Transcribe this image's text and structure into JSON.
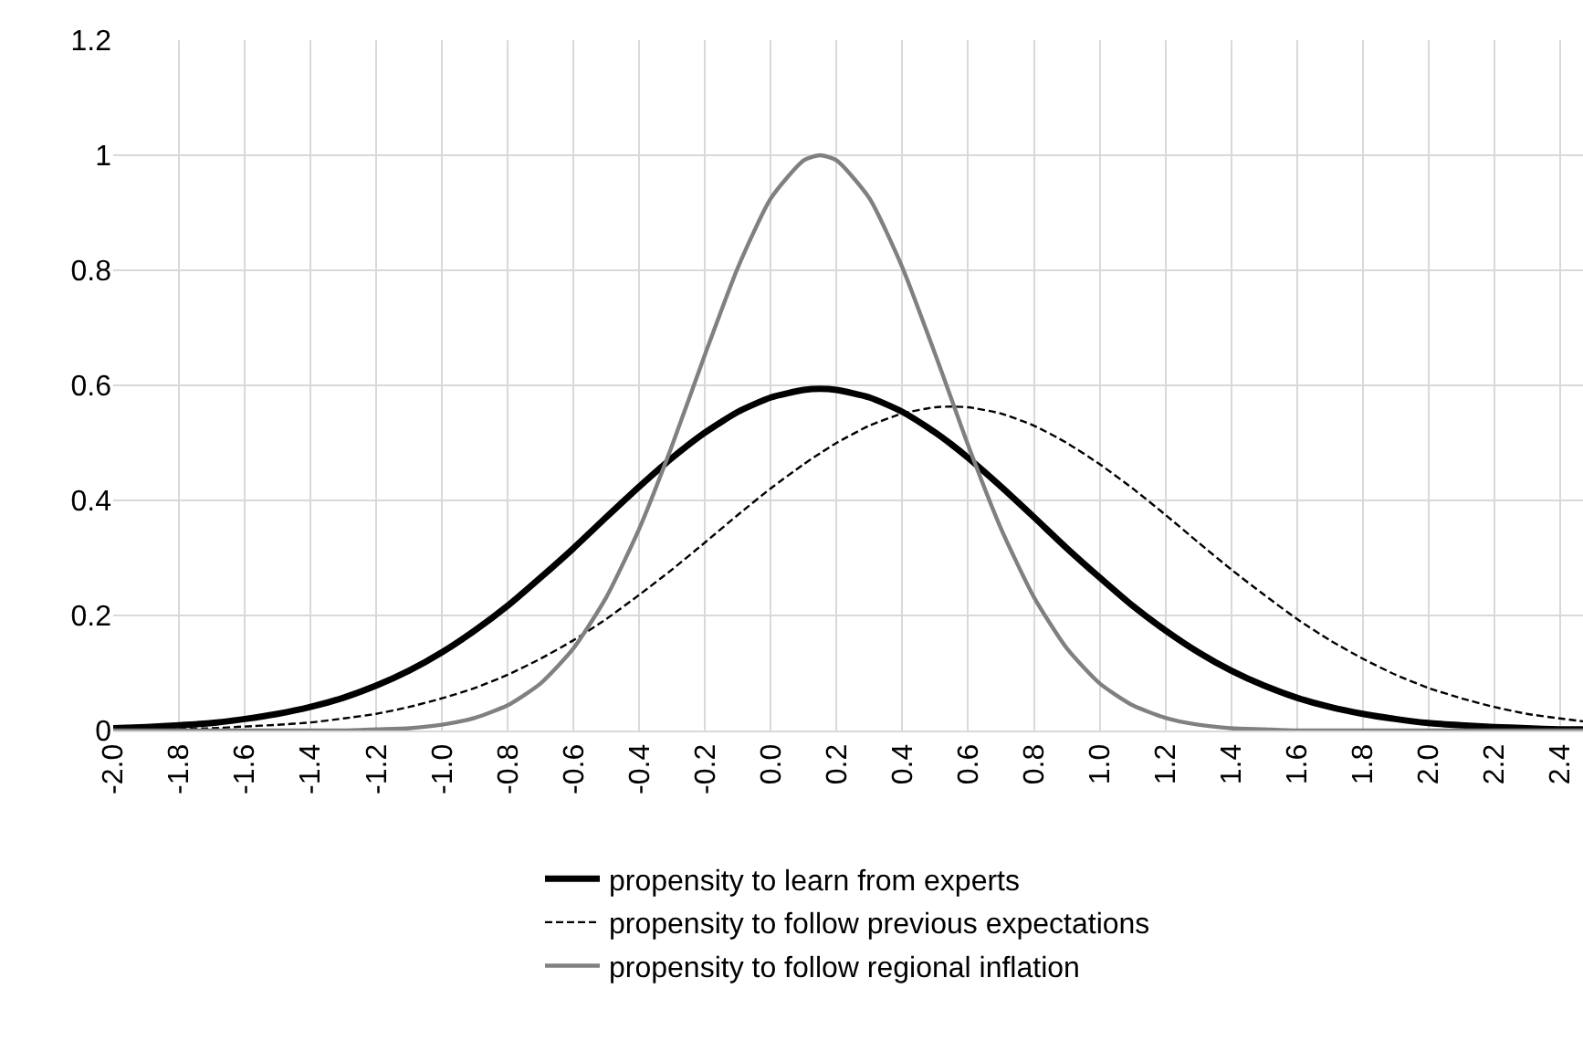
{
  "chart_data": {
    "type": "line",
    "x": [
      -2.0,
      -1.9,
      -1.8,
      -1.7,
      -1.6,
      -1.5,
      -1.4,
      -1.3,
      -1.2,
      -1.1,
      -1.0,
      -0.9,
      -0.8,
      -0.7,
      -0.6,
      -0.5,
      -0.4,
      -0.3,
      -0.2,
      -0.1,
      0.0,
      0.1,
      0.15,
      0.2,
      0.3,
      0.4,
      0.5,
      0.55,
      0.6,
      0.7,
      0.8,
      0.9,
      1.0,
      1.1,
      1.2,
      1.3,
      1.4,
      1.5,
      1.6,
      1.7,
      1.8,
      1.9,
      2.0,
      2.1,
      2.2,
      2.3,
      2.4,
      2.47
    ],
    "series": [
      {
        "name": "propensity to learn from experts",
        "color": "#000000",
        "line_style": "solid",
        "values": [
          0.004,
          0.006,
          0.009,
          0.013,
          0.02,
          0.029,
          0.041,
          0.057,
          0.078,
          0.104,
          0.136,
          0.174,
          0.217,
          0.266,
          0.317,
          0.371,
          0.424,
          0.474,
          0.518,
          0.554,
          0.579,
          0.592,
          0.594,
          0.592,
          0.579,
          0.554,
          0.518,
          0.497,
          0.474,
          0.424,
          0.371,
          0.317,
          0.266,
          0.217,
          0.174,
          0.136,
          0.104,
          0.078,
          0.057,
          0.041,
          0.029,
          0.02,
          0.013,
          0.009,
          0.006,
          0.004,
          0.002,
          0.002
        ]
      },
      {
        "name": "propensity to follow previous expectations",
        "color": "#000000",
        "line_style": "dashed",
        "values": [
          0.001,
          0.002,
          0.003,
          0.004,
          0.007,
          0.01,
          0.014,
          0.021,
          0.029,
          0.041,
          0.056,
          0.074,
          0.097,
          0.125,
          0.157,
          0.194,
          0.236,
          0.28,
          0.327,
          0.375,
          0.421,
          0.463,
          0.482,
          0.5,
          0.53,
          0.551,
          0.562,
          0.563,
          0.562,
          0.551,
          0.53,
          0.5,
          0.463,
          0.421,
          0.375,
          0.327,
          0.28,
          0.236,
          0.194,
          0.157,
          0.125,
          0.097,
          0.074,
          0.056,
          0.041,
          0.029,
          0.021,
          0.016
        ]
      },
      {
        "name": "propensity to follow regional inflation",
        "color": "#808080",
        "line_style": "solid",
        "values": [
          0,
          0,
          0,
          0,
          0,
          0,
          0,
          0,
          0.002,
          0.004,
          0.01,
          0.022,
          0.044,
          0.082,
          0.143,
          0.232,
          0.351,
          0.496,
          0.654,
          0.805,
          0.925,
          0.991,
          1.0,
          0.991,
          0.925,
          0.805,
          0.654,
          0.575,
          0.496,
          0.351,
          0.232,
          0.143,
          0.082,
          0.044,
          0.022,
          0.01,
          0.004,
          0.002,
          0,
          0,
          0,
          0,
          0,
          0,
          0,
          0,
          0,
          0
        ]
      }
    ],
    "xlim": [
      -2.0,
      2.47
    ],
    "xticks": [
      {
        "value": -2.0,
        "label": "-2.0"
      },
      {
        "value": -1.8,
        "label": "-1.8"
      },
      {
        "value": -1.6,
        "label": "-1.6"
      },
      {
        "value": -1.4,
        "label": "-1.4"
      },
      {
        "value": -1.2,
        "label": "-1.2"
      },
      {
        "value": -1.0,
        "label": "-1.0"
      },
      {
        "value": -0.8,
        "label": "-0.8"
      },
      {
        "value": -0.6,
        "label": "-0.6"
      },
      {
        "value": -0.4,
        "label": "-0.4"
      },
      {
        "value": -0.2,
        "label": "-0.2"
      },
      {
        "value": 0,
        "label": "0.0"
      },
      {
        "value": 0.2,
        "label": "0.2"
      },
      {
        "value": 0.4,
        "label": "0.4"
      },
      {
        "value": 0.6,
        "label": "0.6"
      },
      {
        "value": 0.8,
        "label": "0.8"
      },
      {
        "value": 1.0,
        "label": "1.0"
      },
      {
        "value": 1.2,
        "label": "1.2"
      },
      {
        "value": 1.4,
        "label": "1.4"
      },
      {
        "value": 1.6,
        "label": "1.6"
      },
      {
        "value": 1.8,
        "label": "1.8"
      },
      {
        "value": 2.0,
        "label": "2.0"
      },
      {
        "value": 2.2,
        "label": "2.2"
      },
      {
        "value": 2.4,
        "label": "2.4"
      }
    ],
    "ylim": [
      0,
      1.2
    ],
    "yticks": [
      0,
      0.2,
      0.4,
      0.6,
      0.8,
      1,
      1.2
    ],
    "grid": true,
    "legend": "bottom",
    "marker": "none"
  }
}
